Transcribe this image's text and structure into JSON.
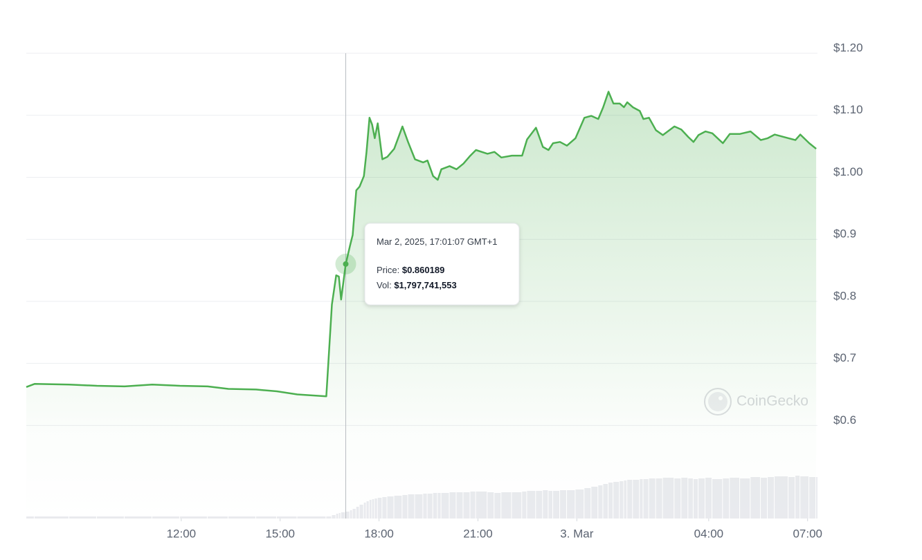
{
  "chart_data": {
    "type": "line",
    "x": [
      7.3,
      7.55,
      8.6,
      9.44,
      10.28,
      11.12,
      11.96,
      12.8,
      13.43,
      14.27,
      14.9,
      15.52,
      16.4,
      16.57,
      16.7,
      16.78,
      16.85,
      16.99,
      17.12,
      17.2,
      17.31,
      17.41,
      17.54,
      17.62,
      17.71,
      17.79,
      17.87,
      17.96,
      18.1,
      18.25,
      18.46,
      18.71,
      18.88,
      19.09,
      19.34,
      19.47,
      19.64,
      19.78,
      19.89,
      20.14,
      20.35,
      20.56,
      20.77,
      20.94,
      21.29,
      21.5,
      21.71,
      22.03,
      22.34,
      22.49,
      22.76,
      22.97,
      23.14,
      23.28,
      23.49,
      23.7,
      23.96,
      24.23,
      24.44,
      24.65,
      24.8,
      24.96,
      25.11,
      25.3,
      25.43,
      25.53,
      25.7,
      25.91,
      26.02,
      26.19,
      26.4,
      26.61,
      26.96,
      27.17,
      27.38,
      27.54,
      27.69,
      27.9,
      28.11,
      28.43,
      28.64,
      28.95,
      29.27,
      29.58,
      29.79,
      30.0,
      30.42,
      30.63,
      30.78,
      31.05,
      31.26
    ],
    "values": [
      0.662,
      0.667,
      0.666,
      0.664,
      0.663,
      0.666,
      0.664,
      0.663,
      0.659,
      0.658,
      0.655,
      0.65,
      0.647,
      0.795,
      0.842,
      0.84,
      0.803,
      0.860189,
      0.89,
      0.907,
      0.979,
      0.985,
      1.002,
      1.041,
      1.096,
      1.085,
      1.063,
      1.087,
      1.029,
      1.033,
      1.046,
      1.082,
      1.057,
      1.029,
      1.024,
      1.027,
      1.002,
      0.996,
      1.013,
      1.018,
      1.013,
      1.022,
      1.035,
      1.044,
      1.038,
      1.041,
      1.032,
      1.035,
      1.035,
      1.061,
      1.08,
      1.049,
      1.044,
      1.055,
      1.057,
      1.051,
      1.063,
      1.096,
      1.099,
      1.094,
      1.113,
      1.138,
      1.119,
      1.119,
      1.113,
      1.121,
      1.113,
      1.107,
      1.094,
      1.096,
      1.076,
      1.068,
      1.082,
      1.077,
      1.065,
      1.057,
      1.068,
      1.074,
      1.071,
      1.055,
      1.07,
      1.07,
      1.074,
      1.06,
      1.063,
      1.069,
      1.063,
      1.06,
      1.069,
      1.055,
      1.046
    ],
    "volume": [
      540000000,
      540000000,
      540000000,
      540000000,
      540000000,
      540000000,
      540000000,
      540000000,
      540000000,
      540000000,
      540000000,
      540000000,
      540000000,
      900000000,
      1260000000,
      1440000000,
      1620000000,
      1797741553,
      2160000000,
      2520000000,
      3060000000,
      3600000000,
      4140000000,
      4500000000,
      4860000000,
      5040000000,
      5220000000,
      5400000000,
      5580000000,
      5760000000,
      5940000000,
      6120000000,
      6300000000,
      6300000000,
      6480000000,
      6480000000,
      6660000000,
      6660000000,
      6660000000,
      6840000000,
      6840000000,
      6840000000,
      7020000000,
      7020000000,
      6840000000,
      6660000000,
      6840000000,
      6840000000,
      7020000000,
      7200000000,
      7200000000,
      7380000000,
      7200000000,
      7200000000,
      7380000000,
      7380000000,
      7560000000,
      7920000000,
      8280000000,
      8640000000,
      9000000000,
      9360000000,
      9540000000,
      9720000000,
      9900000000,
      10080000000,
      10080000000,
      10260000000,
      10260000000,
      10440000000,
      10440000000,
      10620000000,
      10440000000,
      10620000000,
      10440000000,
      10260000000,
      10440000000,
      10620000000,
      10260000000,
      10440000000,
      10620000000,
      10440000000,
      10800000000,
      10620000000,
      10800000000,
      10980000000,
      10800000000,
      11160000000,
      10980000000,
      10800000000,
      10800000000
    ],
    "color": "#4caf50",
    "volume_color": "#e9eaee",
    "xlim": [
      7.3,
      31.3
    ],
    "xticks": [
      {
        "value": 12,
        "label": "12:00"
      },
      {
        "value": 15,
        "label": "15:00"
      },
      {
        "value": 18,
        "label": "18:00"
      },
      {
        "value": 21,
        "label": "21:00"
      },
      {
        "value": 24,
        "label": "3. Mar"
      },
      {
        "value": 28,
        "label": "04:00"
      },
      {
        "value": 31,
        "label": "07:00"
      }
    ],
    "ylim": [
      0.45,
      1.2
    ],
    "yticks": [
      {
        "value": 1.2,
        "label": "$1.20"
      },
      {
        "value": 1.1,
        "label": "$1.10"
      },
      {
        "value": 1.0,
        "label": "$1.00"
      },
      {
        "value": 0.9,
        "label": "$0.9"
      },
      {
        "value": 0.8,
        "label": "$0.8"
      },
      {
        "value": 0.7,
        "label": "$0.7"
      },
      {
        "value": 0.6,
        "label": "$0.6"
      }
    ],
    "grid": true,
    "tooltip": {
      "date": "Mar 2, 2025, 17:01:07 GMT+1",
      "price_label": "Price:",
      "price": "$0.860189",
      "vol_label": "Vol:",
      "vol": "$1,797,741,553"
    },
    "watermark": "CoinGecko"
  }
}
